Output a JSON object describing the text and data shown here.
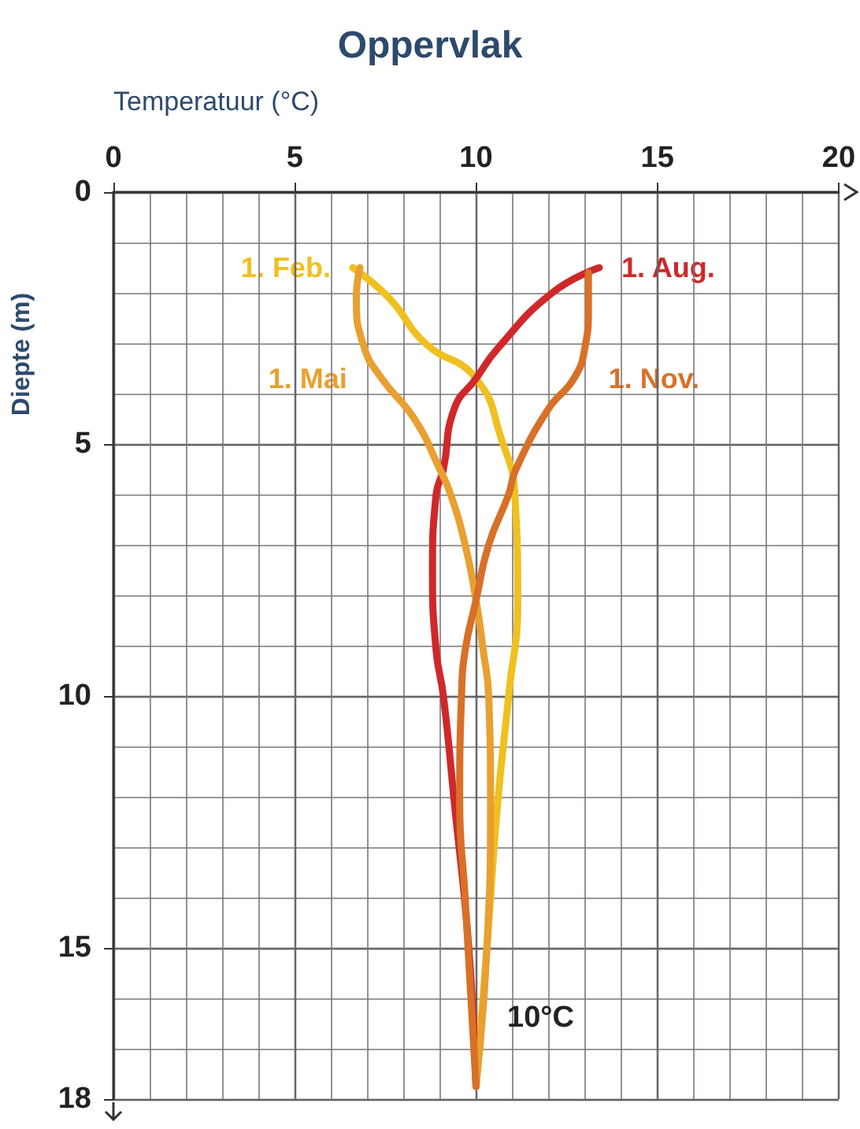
{
  "chart_data": {
    "type": "line",
    "title": "Oppervlak",
    "xlabel": "Temperatuur (°C)",
    "ylabel": "Diepte (m)",
    "xlim": [
      0,
      20
    ],
    "xticks": [
      0,
      5,
      10,
      15,
      20
    ],
    "ylim": [
      18,
      0
    ],
    "yticks": [
      0,
      5,
      10,
      15,
      18
    ],
    "grid": true,
    "legend": false,
    "marker": "none",
    "line_style": "solid",
    "annotations": [
      "10°C"
    ],
    "series": [
      {
        "name": "1. Feb.",
        "color": "#f0c020",
        "x": [
          6.6,
          7.6,
          8.6,
          10.0,
          10.7,
          11.07,
          11.15,
          10.9,
          10.6,
          10.3,
          10.0
        ],
        "values": [
          1.5,
          2.1,
          3.0,
          3.7,
          4.9,
          6.0,
          8.1,
          10.0,
          12.1,
          15.0,
          17.75
        ]
      },
      {
        "name": "1. Aug.",
        "color": "#d0282a",
        "x": [
          13.4,
          12.1,
          10.6,
          10.0,
          9.4,
          9.1,
          8.9,
          8.8,
          8.9,
          9.1,
          9.4,
          9.8,
          10.0
        ],
        "values": [
          1.5,
          2.0,
          3.1,
          3.7,
          4.3,
          5.5,
          6.0,
          7.5,
          9.1,
          10.0,
          12.1,
          15.0,
          17.75
        ]
      },
      {
        "name": "1. Mai",
        "color": "#e8a030",
        "x": [
          6.8,
          6.7,
          6.9,
          7.4,
          8.3,
          9.0,
          9.3,
          9.7,
          10.0,
          10.2,
          10.35,
          10.4,
          10.3,
          10.0
        ],
        "values": [
          1.5,
          2.1,
          3.05,
          3.7,
          4.5,
          5.5,
          6.0,
          7.0,
          8.1,
          9.1,
          10.0,
          12.1,
          15.0,
          17.75
        ]
      },
      {
        "name": "1. Nov.",
        "color": "#d87028",
        "x": [
          13.1,
          13.1,
          13.0,
          12.7,
          12.0,
          11.1,
          10.9,
          10.35,
          10.0,
          9.7,
          9.6,
          9.55,
          9.7,
          10.0
        ],
        "values": [
          1.6,
          2.3,
          3.1,
          3.7,
          4.3,
          5.5,
          6.0,
          7.0,
          8.1,
          9.1,
          10.0,
          12.1,
          14.0,
          17.75
        ]
      }
    ]
  }
}
